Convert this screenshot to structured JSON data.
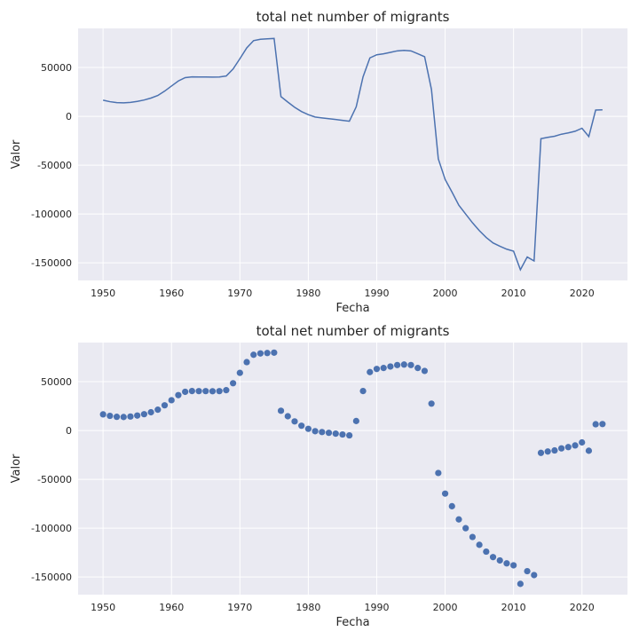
{
  "chart_data": [
    {
      "type": "line",
      "title": "total net number of migrants",
      "xlabel": "Fecha",
      "ylabel": "Valor",
      "xlim": [
        1946.35,
        2026.65
      ],
      "ylim": [
        -168000,
        90000
      ],
      "xticks": [
        1950,
        1960,
        1970,
        1980,
        1990,
        2000,
        2010,
        2020
      ],
      "yticks": [
        -150000,
        -100000,
        -50000,
        0,
        50000
      ],
      "grid": true,
      "x": [
        1950,
        1951,
        1952,
        1953,
        1954,
        1955,
        1956,
        1957,
        1958,
        1959,
        1960,
        1961,
        1962,
        1963,
        1964,
        1965,
        1966,
        1967,
        1968,
        1969,
        1970,
        1971,
        1972,
        1973,
        1974,
        1975,
        1976,
        1977,
        1978,
        1979,
        1980,
        1981,
        1982,
        1983,
        1984,
        1985,
        1986,
        1987,
        1988,
        1989,
        1990,
        1991,
        1992,
        1993,
        1994,
        1995,
        1996,
        1997,
        1998,
        1999,
        2000,
        2001,
        2002,
        2003,
        2004,
        2005,
        2006,
        2007,
        2008,
        2009,
        2010,
        2011,
        2012,
        2013,
        2014,
        2015,
        2016,
        2017,
        2018,
        2019,
        2020,
        2021,
        2022,
        2023
      ],
      "values": [
        16500,
        15000,
        14000,
        13800,
        14300,
        15300,
        16700,
        18700,
        21300,
        25800,
        31000,
        36200,
        39600,
        40400,
        40300,
        40300,
        40200,
        40300,
        41300,
        48400,
        59000,
        70000,
        77500,
        78900,
        79300,
        79700,
        20200,
        14600,
        9300,
        4900,
        1700,
        -700,
        -1600,
        -2400,
        -3200,
        -4100,
        -5000,
        9700,
        40400,
        59800,
        63000,
        64000,
        65500,
        67000,
        67500,
        67000,
        64000,
        61000,
        27500,
        -43500,
        -64600,
        -77500,
        -91000,
        -100000,
        -109000,
        -117000,
        -124000,
        -129600,
        -133000,
        -136000,
        -138000,
        -157000,
        -144000,
        -148000,
        -22900,
        -21500,
        -20400,
        -18300,
        -17000,
        -15300,
        -12200,
        -20700,
        6400,
        6600
      ]
    },
    {
      "type": "scatter",
      "title": "total net number of migrants",
      "xlabel": "Fecha",
      "ylabel": "Valor",
      "xlim": [
        1946.35,
        2026.65
      ],
      "ylim": [
        -168000,
        90000
      ],
      "xticks": [
        1950,
        1960,
        1970,
        1980,
        1990,
        2000,
        2010,
        2020
      ],
      "yticks": [
        -150000,
        -100000,
        -50000,
        0,
        50000
      ],
      "grid": true,
      "x": [
        1950,
        1951,
        1952,
        1953,
        1954,
        1955,
        1956,
        1957,
        1958,
        1959,
        1960,
        1961,
        1962,
        1963,
        1964,
        1965,
        1966,
        1967,
        1968,
        1969,
        1970,
        1971,
        1972,
        1973,
        1974,
        1975,
        1976,
        1977,
        1978,
        1979,
        1980,
        1981,
        1982,
        1983,
        1984,
        1985,
        1986,
        1987,
        1988,
        1989,
        1990,
        1991,
        1992,
        1993,
        1994,
        1995,
        1996,
        1997,
        1998,
        1999,
        2000,
        2001,
        2002,
        2003,
        2004,
        2005,
        2006,
        2007,
        2008,
        2009,
        2010,
        2011,
        2012,
        2013,
        2014,
        2015,
        2016,
        2017,
        2018,
        2019,
        2020,
        2021,
        2022,
        2023
      ],
      "values": [
        16500,
        15000,
        14000,
        13800,
        14300,
        15300,
        16700,
        18700,
        21300,
        25800,
        31000,
        36200,
        39600,
        40400,
        40300,
        40300,
        40200,
        40300,
        41300,
        48400,
        59000,
        70000,
        77500,
        78900,
        79300,
        79700,
        20200,
        14600,
        9300,
        4900,
        1700,
        -700,
        -1600,
        -2400,
        -3200,
        -4100,
        -5000,
        9700,
        40400,
        59800,
        63000,
        64000,
        65500,
        67000,
        67500,
        67000,
        64000,
        61000,
        27500,
        -43500,
        -64600,
        -77500,
        -91000,
        -100000,
        -109000,
        -117000,
        -124000,
        -129600,
        -133000,
        -136000,
        -138000,
        -157000,
        -144000,
        -148000,
        -22900,
        -21500,
        -20400,
        -18300,
        -17000,
        -15300,
        -12200,
        -20700,
        6400,
        6600
      ]
    }
  ],
  "colors": {
    "series": "#4c72b0",
    "plot_background": "#eaeaf2",
    "grid": "#ffffff",
    "text": "#262626"
  }
}
